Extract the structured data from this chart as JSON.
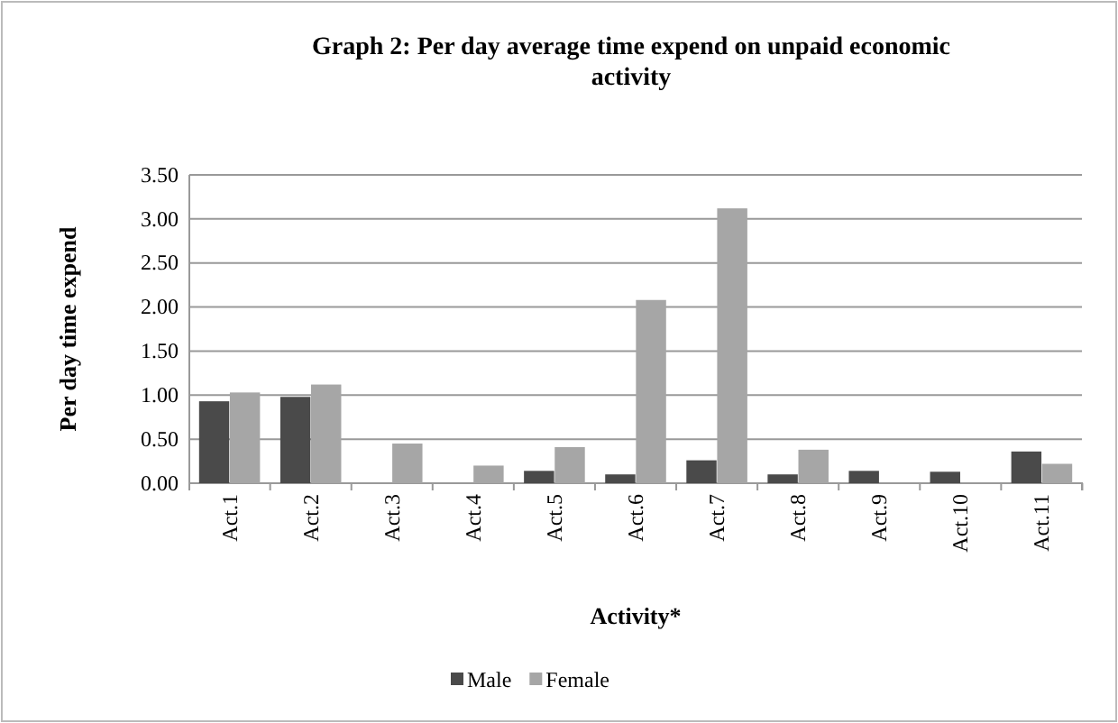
{
  "chart_data": {
    "type": "bar",
    "title": "Graph 2: Per day average time expend on unpaid economic activity",
    "xlabel": "Activity*",
    "ylabel": "Per day time expend",
    "categories": [
      "Act.1",
      "Act.2",
      "Act.3",
      "Act.4",
      "Act.5",
      "Act.6",
      "Act.7",
      "Act.8",
      "Act.9",
      "Act.10",
      "Act.11"
    ],
    "series": [
      {
        "name": "Male",
        "color": "#4a4a4a",
        "values": [
          0.93,
          0.98,
          0,
          0,
          0.14,
          0.1,
          0.26,
          0.1,
          0.14,
          0.13,
          0.36
        ]
      },
      {
        "name": "Female",
        "color": "#a6a6a6",
        "values": [
          1.03,
          1.12,
          0.45,
          0.2,
          0.41,
          2.08,
          3.12,
          0.38,
          0,
          0,
          0.22
        ]
      }
    ],
    "ylim": [
      0,
      3.5
    ],
    "yticks": [
      {
        "value": 0,
        "label": "0.00"
      },
      {
        "value": 0.5,
        "label": "0.50"
      },
      {
        "value": 1,
        "label": "1.00"
      },
      {
        "value": 1.5,
        "label": "1.50"
      },
      {
        "value": 2,
        "label": "2.00"
      },
      {
        "value": 2.5,
        "label": "2.50"
      },
      {
        "value": 3,
        "label": "3.00"
      },
      {
        "value": 3.5,
        "label": "3.50"
      }
    ],
    "grid": "y",
    "legend": "bottom"
  }
}
